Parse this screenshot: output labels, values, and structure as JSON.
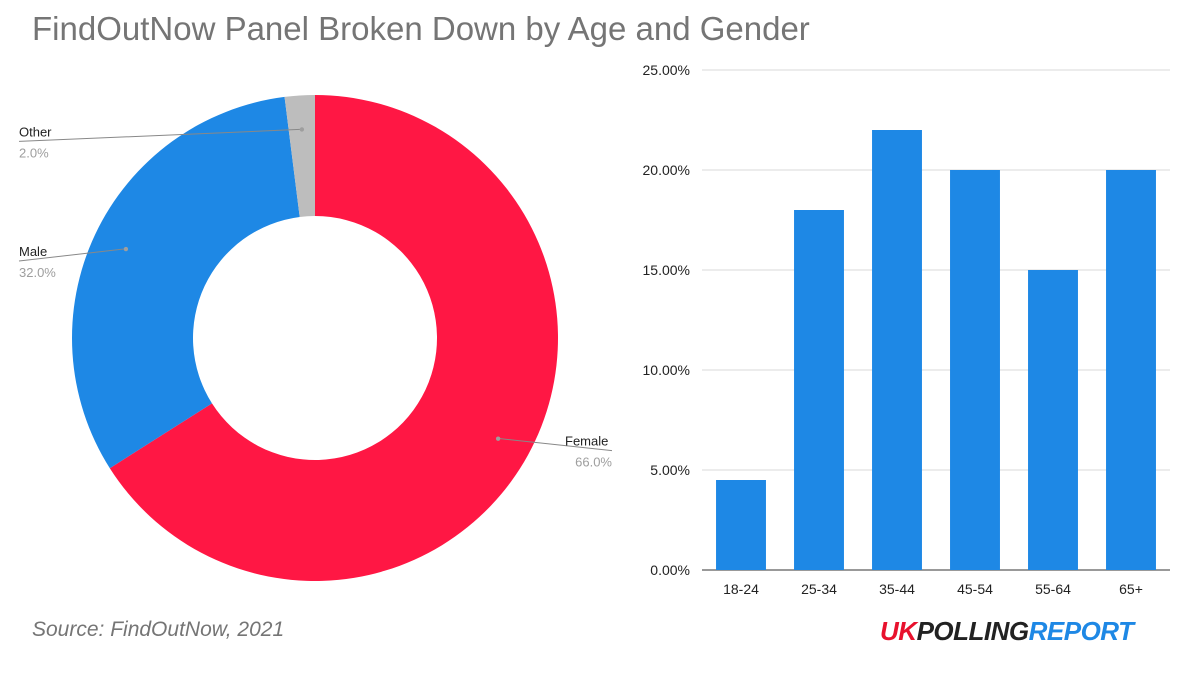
{
  "title": "FindOutNow Panel Broken Down by Age and Gender",
  "source": "Source: FindOutNow, 2021",
  "logo": {
    "part1": "UK",
    "part2": "POLLING",
    "part3": "REPORT"
  },
  "colors": {
    "female": "#ff1744",
    "male": "#1e88e5",
    "other": "#bdbdbd",
    "bar": "#1e88e5",
    "grid": "#d9d9d9",
    "axis": "#333333"
  },
  "chart_data": [
    {
      "type": "pie",
      "donut": true,
      "slices": [
        {
          "label": "Female",
          "pct_label": "66.0%",
          "value": 66.0,
          "color": "#ff1744"
        },
        {
          "label": "Male",
          "pct_label": "32.0%",
          "value": 32.0,
          "color": "#1e88e5"
        },
        {
          "label": "Other",
          "pct_label": "2.0%",
          "value": 2.0,
          "color": "#bdbdbd"
        }
      ]
    },
    {
      "type": "bar",
      "categories": [
        "18-24",
        "25-34",
        "35-44",
        "45-54",
        "55-64",
        "65+"
      ],
      "values": [
        4.5,
        18,
        22,
        20,
        15,
        20
      ],
      "ylim": [
        0,
        25
      ],
      "yticks": [
        {
          "value": 0,
          "label": "0.00%"
        },
        {
          "value": 5,
          "label": "5.00%"
        },
        {
          "value": 10,
          "label": "10.00%"
        },
        {
          "value": 15,
          "label": "15.00%"
        },
        {
          "value": 20,
          "label": "20.00%"
        },
        {
          "value": 25,
          "label": "25.00%"
        }
      ],
      "grid": true,
      "color": "#1e88e5"
    }
  ]
}
